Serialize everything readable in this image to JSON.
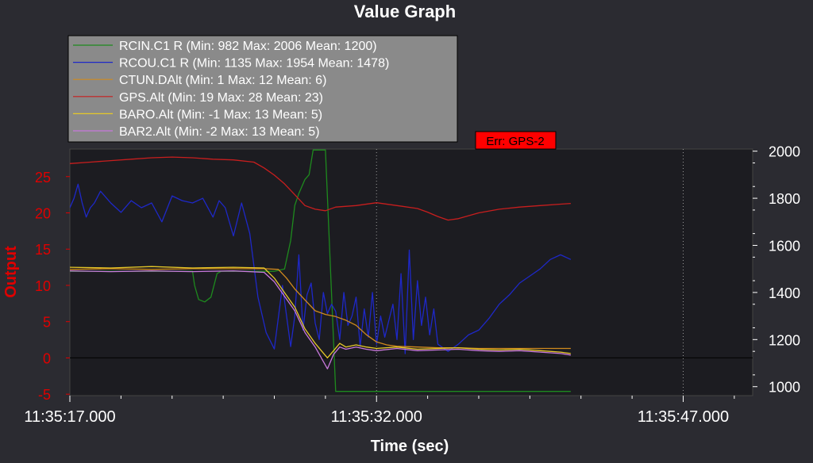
{
  "chart_data": {
    "type": "line",
    "title": "Value Graph",
    "xlabel": "Time (sec)",
    "ylabel": "Output",
    "x_unit": "seconds since 11:35:17.000",
    "xlim": [
      0,
      24.5
    ],
    "x_ticks": [
      {
        "x": 0,
        "label": "11:35:17.000"
      },
      {
        "x": 15,
        "label": "11:35:32.000"
      },
      {
        "x": 30,
        "label": "11:35:47.000"
      }
    ],
    "y_left": {
      "lim": [
        -5.2,
        28.8
      ],
      "ticks": [
        -5,
        0,
        5,
        10,
        15,
        20,
        25
      ],
      "color": "#e00000"
    },
    "y_right": {
      "lim": [
        962,
        2009
      ],
      "ticks": [
        1000,
        1200,
        1400,
        1600,
        1800,
        2000
      ],
      "color": "#ffffff"
    },
    "grid": "vertical dotted lines at labeled times",
    "legend_position": "top-left",
    "annotation": {
      "text": "Err: GPS-2",
      "x": 20.8,
      "color": "#ff0000"
    },
    "series": [
      {
        "name": "RCIN.C1 R (Min: 982 Max: 2006 Mean: 1200)",
        "color": "#1e8a1e",
        "axis": "right",
        "x": [
          0,
          6.0,
          6.1,
          6.3,
          6.6,
          6.9,
          7.2,
          7.4,
          7.6,
          7.8,
          8.0,
          8.2,
          9.0,
          10.0,
          10.5,
          10.8,
          11.0,
          11.2,
          11.5,
          11.7,
          11.9,
          12.1,
          12.5,
          13.0,
          24.5
        ],
        "y": [
          1490,
          1490,
          1430,
          1370,
          1360,
          1380,
          1480,
          1490,
          1490,
          1490,
          1490,
          1490,
          1490,
          1490,
          1500,
          1620,
          1770,
          1820,
          1880,
          1900,
          2005,
          2005,
          2005,
          980,
          980
        ]
      },
      {
        "name": "RCOU.C1 R (Min: 1135 Max: 1954 Mean: 1478)",
        "color": "#1e28c8",
        "axis": "right",
        "x": [
          0,
          0.2,
          0.4,
          0.6,
          0.8,
          1.0,
          1.2,
          1.5,
          2.0,
          2.5,
          3.0,
          3.5,
          4.0,
          4.5,
          5.0,
          5.5,
          6.0,
          6.5,
          7.0,
          7.3,
          7.6,
          8.0,
          8.4,
          8.8,
          9.2,
          9.6,
          10.0,
          10.4,
          10.8,
          11.0,
          11.2,
          11.4,
          11.6,
          11.8,
          12.0,
          12.2,
          12.4,
          12.6,
          12.8,
          13.0,
          13.2,
          13.4,
          13.6,
          13.8,
          14.0,
          14.2,
          14.4,
          14.6,
          14.8,
          15.0,
          15.2,
          15.4,
          15.6,
          15.8,
          16.0,
          16.2,
          16.4,
          16.6,
          16.8,
          17.0,
          17.2,
          17.4,
          17.6,
          17.8,
          18.0,
          18.5,
          19.0,
          19.5,
          20.0,
          20.5,
          21.0,
          21.5,
          22.0,
          22.5,
          23.0,
          23.5,
          24.0,
          24.5
        ],
        "y": [
          1760,
          1800,
          1860,
          1780,
          1720,
          1760,
          1780,
          1830,
          1780,
          1740,
          1790,
          1760,
          1780,
          1700,
          1810,
          1790,
          1780,
          1800,
          1720,
          1790,
          1760,
          1640,
          1780,
          1650,
          1380,
          1230,
          1160,
          1430,
          1170,
          1300,
          1560,
          1240,
          1390,
          1440,
          1270,
          1200,
          1400,
          1310,
          1350,
          1320,
          1200,
          1400,
          1260,
          1300,
          1380,
          1170,
          1330,
          1210,
          1400,
          1180,
          1300,
          1210,
          1280,
          1350,
          1200,
          1480,
          1140,
          1580,
          1200,
          1450,
          1260,
          1380,
          1220,
          1330,
          1180,
          1150,
          1180,
          1220,
          1240,
          1290,
          1350,
          1390,
          1440,
          1470,
          1500,
          1540,
          1560,
          1540
        ]
      },
      {
        "name": "CTUN.DAlt (Min: 1 Max: 12 Mean: 6)",
        "color": "#d08a1e",
        "axis": "left",
        "x": [
          0,
          2,
          4,
          6,
          8,
          9.5,
          10.2,
          10.6,
          11.0,
          11.5,
          12.0,
          12.5,
          13.0,
          13.5,
          14.0,
          14.5,
          15.0,
          15.5,
          16.0,
          17,
          18,
          19,
          20,
          21,
          22,
          23,
          24,
          24.5
        ],
        "y": [
          12.2,
          12.3,
          12.2,
          12.3,
          12.3,
          12.3,
          12.2,
          11.0,
          9.5,
          8.0,
          6.5,
          6.0,
          5.7,
          5.2,
          4.5,
          3.2,
          2.2,
          1.8,
          1.6,
          1.5,
          1.4,
          1.4,
          1.3,
          1.3,
          1.3,
          1.3,
          1.3,
          1.3
        ]
      },
      {
        "name": "GPS.Alt (Min: 19 Max: 28 Mean: 23)",
        "color": "#c81e1e",
        "axis": "left",
        "x": [
          0,
          1,
          2,
          3,
          4,
          5,
          6,
          7,
          8,
          9,
          9.5,
          10.0,
          10.5,
          11.0,
          11.5,
          12.0,
          12.5,
          13.0,
          14.0,
          15.0,
          16.0,
          17.0,
          17.5,
          18.0,
          18.5,
          19.0,
          20.0,
          21.0,
          22.0,
          23.0,
          24.0,
          24.5
        ],
        "y": [
          26.8,
          27.0,
          27.2,
          27.4,
          27.6,
          27.7,
          27.6,
          27.4,
          27.3,
          27.0,
          26.2,
          25.2,
          24.0,
          22.5,
          21.0,
          20.5,
          20.3,
          20.8,
          21.0,
          21.4,
          21.0,
          20.6,
          20.1,
          19.5,
          19.0,
          19.2,
          20.0,
          20.5,
          20.8,
          21.0,
          21.2,
          21.3
        ]
      },
      {
        "name": "BARO.Alt (Min: -1 Max: 13 Mean: 5)",
        "color": "#e6c828",
        "axis": "left",
        "x": [
          0,
          2,
          4,
          6,
          8,
          9.5,
          10.0,
          10.5,
          11.0,
          11.5,
          12.0,
          12.3,
          12.6,
          12.9,
          13.2,
          13.5,
          14.0,
          14.5,
          15.0,
          16.0,
          17.0,
          18.0,
          19.0,
          20.0,
          21.0,
          22.0,
          23.0,
          24.0,
          24.5
        ],
        "y": [
          12.5,
          12.4,
          12.6,
          12.4,
          12.5,
          12.4,
          11.0,
          9.0,
          7.0,
          4.0,
          2.0,
          1.0,
          0.0,
          1.0,
          2.0,
          1.5,
          1.8,
          1.5,
          1.3,
          1.5,
          1.2,
          1.3,
          1.4,
          1.2,
          1.1,
          1.2,
          1.0,
          0.8,
          0.6
        ]
      },
      {
        "name": "BAR2.Alt (Min: -2 Max: 13 Mean: 5)",
        "color": "#c878dc",
        "axis": "left",
        "x": [
          0,
          2,
          4,
          6,
          8,
          9.5,
          10.0,
          10.5,
          11.0,
          11.5,
          12.0,
          12.3,
          12.6,
          12.9,
          13.2,
          13.5,
          14.0,
          14.5,
          15.0,
          16.0,
          17.0,
          18.0,
          19.0,
          20.0,
          21.0,
          22.0,
          23.0,
          24.0,
          24.5
        ],
        "y": [
          12.0,
          11.9,
          12.0,
          11.9,
          12.0,
          11.8,
          10.5,
          8.5,
          6.5,
          3.5,
          1.5,
          0.0,
          -1.5,
          0.5,
          1.5,
          1.2,
          1.5,
          1.2,
          1.0,
          1.3,
          1.0,
          1.1,
          1.2,
          1.0,
          0.9,
          1.0,
          0.8,
          0.6,
          0.4
        ]
      }
    ]
  }
}
